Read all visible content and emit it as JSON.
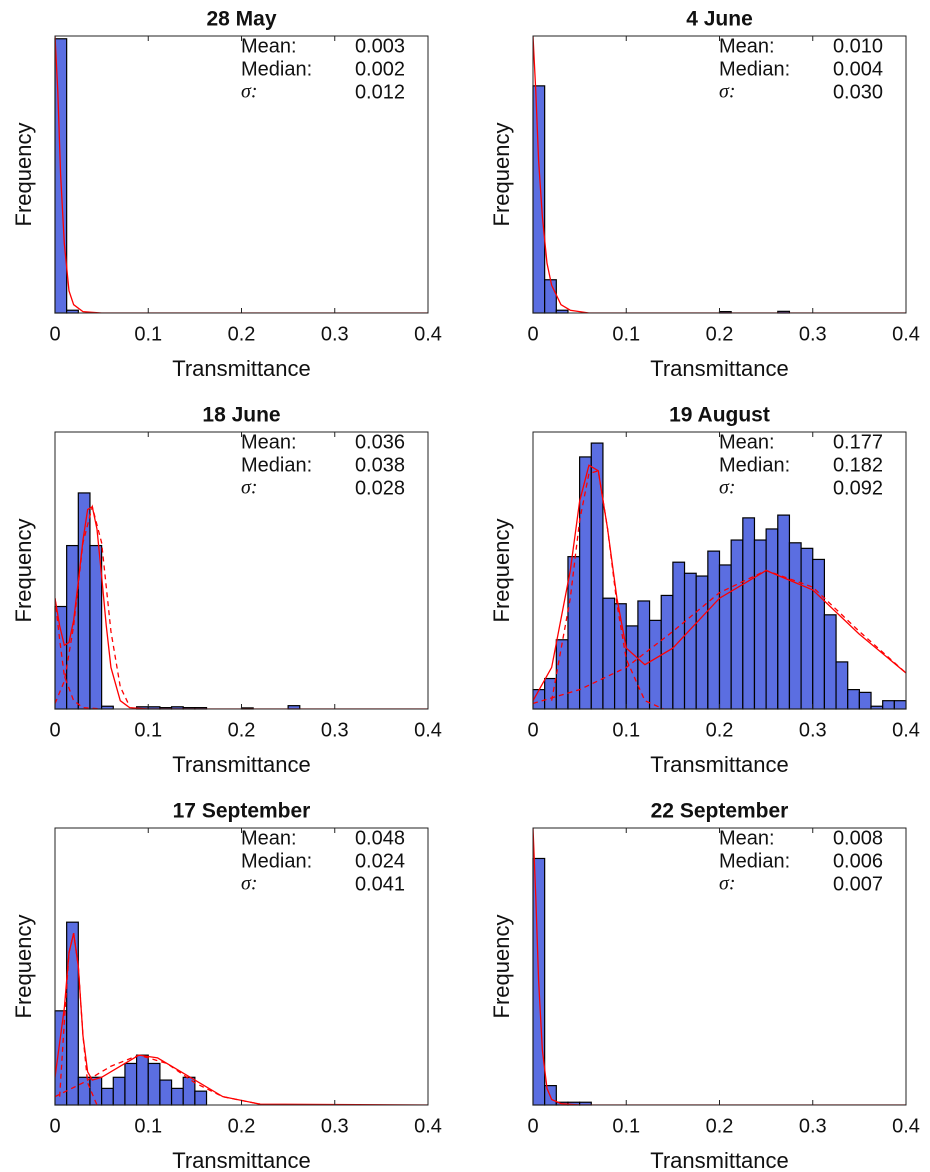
{
  "chart_data": [
    {
      "type": "histogram",
      "title": "28 May",
      "xlabel": "Transmittance",
      "ylabel": "Frequency",
      "bins": [
        0,
        0.0125,
        0.025
      ],
      "values": [
        99,
        1
      ],
      "color": "#5b6ee1",
      "edgecolor": "#000000",
      "xlim": [
        0,
        0.4
      ],
      "xticks": [
        0,
        0.1,
        0.2,
        0.3,
        0.4
      ],
      "ylim": [
        0,
        100
      ],
      "grid": false,
      "curves": [
        {
          "style": "solid",
          "color": "#ff0000",
          "x": [
            0,
            0.003,
            0.006,
            0.01,
            0.015,
            0.02,
            0.03,
            0.05,
            0.4
          ],
          "values": [
            100,
            80,
            50,
            25,
            8,
            3,
            0.5,
            0,
            0
          ]
        }
      ],
      "stats": [
        {
          "label": "Mean:",
          "value": "0.003"
        },
        {
          "label": "Median:",
          "value": "0.002"
        },
        {
          "label": "σ:",
          "value": "0.012"
        }
      ]
    },
    {
      "type": "histogram",
      "title": "4 June",
      "xlabel": "Transmittance",
      "ylabel": "Frequency",
      "bins": [
        0,
        0.0125,
        0.025,
        0.0375,
        0.05,
        0.0625,
        0.075,
        0.0875,
        0.1,
        0.1125,
        0.125,
        0.1375,
        0.15,
        0.1625,
        0.175,
        0.1875,
        0.2,
        0.2125,
        0.225,
        0.2375,
        0.25,
        0.2625,
        0.275
      ],
      "values": [
        82,
        12,
        1,
        0,
        0,
        0,
        0,
        0,
        0,
        0,
        0,
        0,
        0,
        0,
        0,
        0,
        0.5,
        0,
        0,
        0,
        0,
        0.6
      ],
      "color": "#5b6ee1",
      "edgecolor": "#000000",
      "xlim": [
        0,
        0.4
      ],
      "xticks": [
        0,
        0.1,
        0.2,
        0.3,
        0.4
      ],
      "ylim": [
        0,
        100
      ],
      "grid": false,
      "curves": [
        {
          "style": "solid",
          "color": "#ff0000",
          "x": [
            0,
            0.003,
            0.006,
            0.01,
            0.015,
            0.02,
            0.03,
            0.04,
            0.06,
            0.4
          ],
          "values": [
            100,
            80,
            55,
            35,
            18,
            10,
            3,
            1,
            0,
            0
          ]
        }
      ],
      "stats": [
        {
          "label": "Mean:",
          "value": "0.010"
        },
        {
          "label": "Median:",
          "value": "0.004"
        },
        {
          "label": "σ:",
          "value": "0.030"
        }
      ]
    },
    {
      "type": "histogram",
      "title": "18 June",
      "xlabel": "Transmittance",
      "ylabel": "Frequency",
      "bins": [
        0,
        0.0125,
        0.025,
        0.0375,
        0.05,
        0.0625,
        0.075,
        0.0875,
        0.1,
        0.1125,
        0.125,
        0.1375,
        0.15,
        0.1625,
        0.175,
        0.1875,
        0.2,
        0.2125,
        0.225,
        0.2375,
        0.25,
        0.2625
      ],
      "values": [
        37,
        59,
        78,
        59,
        1,
        0,
        0,
        0.8,
        0.8,
        0.5,
        0.8,
        0.5,
        0.5,
        0,
        0,
        0,
        0.4,
        0,
        0,
        0,
        1.2
      ],
      "color": "#5b6ee1",
      "edgecolor": "#000000",
      "xlim": [
        0,
        0.4
      ],
      "xticks": [
        0,
        0.1,
        0.2,
        0.3,
        0.4
      ],
      "ylim": [
        0,
        100
      ],
      "grid": false,
      "curves": [
        {
          "style": "solid",
          "color": "#ff0000",
          "x": [
            0,
            0.005,
            0.01,
            0.015,
            0.02,
            0.025,
            0.03,
            0.035,
            0.04,
            0.045,
            0.05,
            0.055,
            0.06,
            0.07,
            0.08,
            0.1,
            0.4
          ],
          "values": [
            40,
            30,
            23,
            24,
            32,
            46,
            61,
            72,
            73,
            65,
            48,
            30,
            15,
            3,
            0.5,
            0,
            0
          ]
        },
        {
          "style": "dashed",
          "color": "#ff0000",
          "x": [
            0,
            0.005,
            0.01,
            0.02,
            0.03,
            0.05
          ],
          "values": [
            40,
            25,
            12,
            3,
            0.5,
            0
          ]
        },
        {
          "style": "dashed",
          "color": "#ff0000",
          "x": [
            0,
            0.01,
            0.02,
            0.03,
            0.04,
            0.05,
            0.06,
            0.07,
            0.08
          ],
          "values": [
            2,
            10,
            30,
            60,
            73,
            60,
            28,
            8,
            1
          ]
        }
      ],
      "stats": [
        {
          "label": "Mean:",
          "value": "0.036"
        },
        {
          "label": "Median:",
          "value": "0.038"
        },
        {
          "label": "σ:",
          "value": "0.028"
        }
      ]
    },
    {
      "type": "histogram",
      "title": "19 August",
      "xlabel": "Transmittance",
      "ylabel": "Frequency",
      "bins": [
        0,
        0.0125,
        0.025,
        0.0375,
        0.05,
        0.0625,
        0.075,
        0.0875,
        0.1,
        0.1125,
        0.125,
        0.1375,
        0.15,
        0.1625,
        0.175,
        0.1875,
        0.2,
        0.2125,
        0.225,
        0.2375,
        0.25,
        0.2625,
        0.275,
        0.2875,
        0.3,
        0.3125,
        0.325,
        0.3375,
        0.35,
        0.3625,
        0.375,
        0.3875,
        0.4
      ],
      "values": [
        7,
        11,
        25,
        55,
        91,
        96,
        40,
        38,
        30,
        39,
        32,
        41,
        53,
        49,
        48,
        57,
        52,
        61,
        69,
        61,
        65,
        70,
        60,
        58,
        54,
        34,
        17,
        7,
        6,
        1,
        3,
        3
      ],
      "color": "#5b6ee1",
      "edgecolor": "#000000",
      "xlim": [
        0,
        0.4
      ],
      "xticks": [
        0,
        0.1,
        0.2,
        0.3,
        0.4
      ],
      "ylim": [
        0,
        100
      ],
      "grid": false,
      "curves": [
        {
          "style": "solid",
          "color": "#ff0000",
          "x": [
            0,
            0.02,
            0.04,
            0.05,
            0.06,
            0.07,
            0.08,
            0.09,
            0.1,
            0.12,
            0.15,
            0.2,
            0.25,
            0.3,
            0.35,
            0.4
          ],
          "values": [
            3,
            15,
            50,
            75,
            88,
            86,
            65,
            40,
            22,
            16,
            22,
            40,
            50,
            43,
            27,
            13
          ]
        },
        {
          "style": "dashed",
          "color": "#ff0000",
          "x": [
            0.02,
            0.04,
            0.05,
            0.06,
            0.07,
            0.08,
            0.09,
            0.1,
            0.12,
            0.14
          ],
          "values": [
            3,
            40,
            68,
            85,
            86,
            65,
            38,
            18,
            3,
            0
          ]
        },
        {
          "style": "dashed",
          "color": "#ff0000",
          "x": [
            0,
            0.05,
            0.1,
            0.15,
            0.2,
            0.25,
            0.3,
            0.35,
            0.4
          ],
          "values": [
            2,
            7,
            15,
            28,
            42,
            50,
            44,
            28,
            13
          ]
        }
      ],
      "stats": [
        {
          "label": "Mean:",
          "value": "0.177"
        },
        {
          "label": "Median:",
          "value": "0.182"
        },
        {
          "label": "σ:",
          "value": "0.092"
        }
      ]
    },
    {
      "type": "histogram",
      "title": "17 September",
      "xlabel": "Transmittance",
      "ylabel": "Frequency",
      "bins": [
        0,
        0.0125,
        0.025,
        0.0375,
        0.05,
        0.0625,
        0.075,
        0.0875,
        0.1,
        0.1125,
        0.125,
        0.1375,
        0.15,
        0.1625
      ],
      "values": [
        34,
        66,
        10,
        10,
        6,
        10,
        15,
        18,
        15,
        9,
        6,
        10,
        5
      ],
      "color": "#5b6ee1",
      "edgecolor": "#000000",
      "xlim": [
        0,
        0.4
      ],
      "xticks": [
        0,
        0.1,
        0.2,
        0.3,
        0.4
      ],
      "ylim": [
        0,
        100
      ],
      "grid": false,
      "curves": [
        {
          "style": "solid",
          "color": "#ff0000",
          "x": [
            0,
            0.01,
            0.015,
            0.02,
            0.025,
            0.03,
            0.035,
            0.04,
            0.05,
            0.07,
            0.09,
            0.11,
            0.13,
            0.15,
            0.18,
            0.22,
            0.4
          ],
          "values": [
            10,
            35,
            55,
            62,
            50,
            25,
            12,
            9,
            10,
            14,
            18,
            17,
            13,
            9,
            3,
            0.3,
            0
          ]
        },
        {
          "style": "dashed",
          "color": "#ff0000",
          "x": [
            0.005,
            0.01,
            0.015,
            0.02,
            0.025,
            0.03,
            0.035,
            0.045
          ],
          "values": [
            3,
            30,
            55,
            62,
            50,
            25,
            8,
            0
          ]
        },
        {
          "style": "dashed",
          "color": "#ff0000",
          "x": [
            0,
            0.03,
            0.06,
            0.09,
            0.12,
            0.15,
            0.18,
            0.22
          ],
          "values": [
            3,
            8,
            14,
            18,
            15,
            8,
            3,
            0.3
          ]
        }
      ],
      "stats": [
        {
          "label": "Mean:",
          "value": "0.048"
        },
        {
          "label": "Median:",
          "value": "0.024"
        },
        {
          "label": "σ:",
          "value": "0.041"
        }
      ]
    },
    {
      "type": "histogram",
      "title": "22 September",
      "xlabel": "Transmittance",
      "ylabel": "Frequency",
      "bins": [
        0,
        0.0125,
        0.025,
        0.0375,
        0.05,
        0.0625
      ],
      "values": [
        89,
        7,
        1,
        1,
        1
      ],
      "color": "#5b6ee1",
      "edgecolor": "#000000",
      "xlim": [
        0,
        0.4
      ],
      "xticks": [
        0,
        0.1,
        0.2,
        0.3,
        0.4
      ],
      "ylim": [
        0,
        100
      ],
      "grid": false,
      "curves": [
        {
          "style": "solid",
          "color": "#ff0000",
          "x": [
            0,
            0.003,
            0.006,
            0.01,
            0.015,
            0.02,
            0.03,
            0.05,
            0.4
          ],
          "values": [
            100,
            75,
            45,
            20,
            6,
            2,
            0.5,
            0,
            0
          ]
        }
      ],
      "stats": [
        {
          "label": "Mean:",
          "value": "0.008"
        },
        {
          "label": "Median:",
          "value": "0.006"
        },
        {
          "label": "σ:",
          "value": "0.007"
        }
      ]
    }
  ]
}
